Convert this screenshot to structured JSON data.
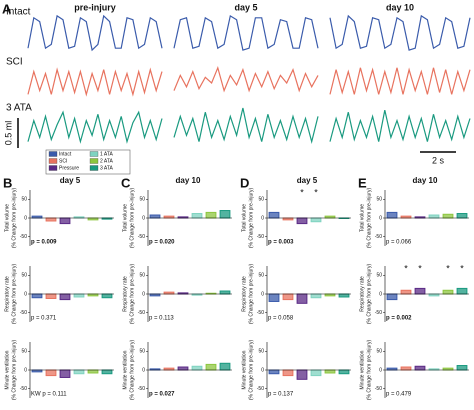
{
  "figure": {
    "panel_a": {
      "label": "A",
      "columns": [
        "pre-injury",
        "day 5",
        "day 10"
      ],
      "scale_volume": "0.5 ml",
      "scale_time": "2 s",
      "rows": [
        {
          "name": "Intact",
          "color": "#3a5bab",
          "traces": [
            [
              0.1,
              0.9,
              0.8,
              0.1,
              0.2,
              0.95,
              0.85,
              0.1,
              0.15,
              0.9,
              0.8,
              0.05,
              0.2,
              0.95,
              0.8,
              0.1,
              0.1,
              0.9,
              0.85,
              0.1,
              0.2,
              0.9,
              0.8,
              0.1
            ],
            [
              0.1,
              0.85,
              0.9,
              0.1,
              0.15,
              0.9,
              0.8,
              0.1,
              0.2,
              0.95,
              0.85,
              0.05,
              0.1,
              0.9,
              0.9,
              0.1,
              0.2,
              0.85,
              0.8,
              0.1,
              0.1,
              0.9,
              0.85,
              0.1
            ],
            [
              0.9,
              0.1,
              0.2,
              0.95,
              0.8,
              0.1,
              0.15,
              0.9,
              0.85,
              0.1,
              0.2,
              0.9,
              0.8,
              0.05,
              0.1,
              0.95,
              0.85,
              0.1,
              0.2,
              0.9,
              0.8,
              0.1,
              0.15,
              0.9
            ]
          ]
        },
        {
          "name": "SCI",
          "color": "#e8735f",
          "traces": [
            [
              0.2,
              0.8,
              0.3,
              0.75,
              0.2,
              0.85,
              0.3,
              0.8,
              0.25,
              0.8,
              0.2,
              0.75,
              0.3,
              0.85,
              0.2,
              0.8,
              0.3,
              0.75,
              0.2,
              0.8,
              0.25,
              0.85,
              0.3,
              0.8
            ],
            [
              0.3,
              0.7,
              0.4,
              0.8,
              0.35,
              0.65,
              0.5,
              0.9,
              0.3,
              0.7,
              0.45,
              0.85,
              0.3,
              0.75,
              0.4,
              0.8,
              0.35,
              0.7,
              0.5,
              0.85,
              0.3,
              0.75,
              0.4,
              0.7
            ],
            [
              0.2,
              0.85,
              0.25,
              0.8,
              0.2,
              0.9,
              0.3,
              0.85,
              0.2,
              0.8,
              0.25,
              0.9,
              0.2,
              0.85,
              0.3,
              0.8,
              0.2,
              0.9,
              0.25,
              0.85,
              0.2,
              0.8,
              0.3,
              0.85
            ]
          ]
        },
        {
          "name": "3 ATA",
          "color": "#1a9a80",
          "traces": [
            [
              0.2,
              0.7,
              0.3,
              0.8,
              0.25,
              0.6,
              0.9,
              0.3,
              0.75,
              0.2,
              0.7,
              0.35,
              0.85,
              0.25,
              0.7,
              0.3,
              0.8,
              0.2,
              0.65,
              0.9,
              0.3,
              0.7,
              0.25,
              0.75
            ],
            [
              0.3,
              0.8,
              0.35,
              0.75,
              0.2,
              0.9,
              0.3,
              0.7,
              0.25,
              0.8,
              0.35,
              1.0,
              0.3,
              0.75,
              0.2,
              0.85,
              0.3,
              0.7,
              0.25,
              0.8,
              0.3,
              0.75,
              0.2,
              0.8
            ],
            [
              0.2,
              0.75,
              0.3,
              0.9,
              0.25,
              0.7,
              0.3,
              0.8,
              0.2,
              0.95,
              0.3,
              0.7,
              0.25,
              0.8,
              0.3,
              0.75,
              0.2,
              0.85,
              0.3,
              0.7,
              0.25,
              0.8,
              0.3,
              0.75
            ]
          ]
        }
      ]
    },
    "legend": [
      {
        "name": "Intact",
        "color": "#3a5bab"
      },
      {
        "name": "SCI",
        "color": "#e8735f"
      },
      {
        "name": "Pressure",
        "color": "#5b2a86"
      },
      {
        "name": "1 ATA",
        "color": "#7fd3c0"
      },
      {
        "name": "2 ATA",
        "color": "#8dc63f"
      },
      {
        "name": "3 ATA",
        "color": "#1a9a80"
      }
    ],
    "ylim": [
      -75,
      75
    ],
    "yticks": [
      50,
      0,
      -50
    ],
    "panels": [
      {
        "label": "B",
        "title": "day 5",
        "plots": [
          {
            "ylabel": [
              "Total volume",
              "(% Change from pre-injury)"
            ],
            "p": "p = 0.009",
            "bold": true,
            "values": [
              5,
              -8,
              -15,
              3,
              -5,
              -3
            ]
          },
          {
            "ylabel": [
              "Respiratory rate",
              "(% Change from pre-injury)"
            ],
            "p": "p = 0.371",
            "bold": false,
            "values": [
              -10,
              -12,
              -15,
              -8,
              -5,
              -10
            ]
          },
          {
            "ylabel": [
              "Minute ventilation",
              "(% Change from pre-injury)"
            ],
            "p": "KW p = 0.111",
            "bold": false,
            "values": [
              -5,
              -15,
              -20,
              -10,
              -8,
              -10
            ]
          }
        ]
      },
      {
        "label": "C",
        "title": "day 10",
        "plots": [
          {
            "ylabel": [
              "Total volume",
              "(% Change from pre-injury)"
            ],
            "p": "p = 0.020",
            "bold": true,
            "values": [
              8,
              5,
              3,
              12,
              15,
              20
            ]
          },
          {
            "ylabel": [
              "Respiratory rate",
              "(% Change from pre-injury)"
            ],
            "p": "p = 0.113",
            "bold": false,
            "values": [
              -5,
              5,
              3,
              -3,
              2,
              8
            ]
          },
          {
            "ylabel": [
              "Minute ventilation",
              "(% Change from pre-injury)"
            ],
            "p": "p = 0.027",
            "bold": true,
            "values": [
              3,
              5,
              8,
              10,
              15,
              18
            ]
          }
        ]
      },
      {
        "label": "D",
        "title": "day 5",
        "plots": [
          {
            "ylabel": [
              "Total volume",
              "(% Change from pre-injury)"
            ],
            "p": "p = 0.003",
            "bold": true,
            "values": [
              15,
              -5,
              -15,
              -10,
              5,
              0
            ],
            "stars": [
              null,
              null,
              "*",
              "*",
              null,
              null
            ]
          },
          {
            "ylabel": [
              "Respiratory rate",
              "(% Change from pre-injury)"
            ],
            "p": "p = 0.058",
            "bold": false,
            "values": [
              -20,
              -15,
              -25,
              -10,
              -5,
              -8
            ]
          },
          {
            "ylabel": [
              "Minute ventilation",
              "(% Change from pre-injury)"
            ],
            "p": "p = 0.137",
            "bold": false,
            "values": [
              -10,
              -15,
              -25,
              -15,
              -8,
              -10
            ]
          }
        ]
      },
      {
        "label": "E",
        "title": "day 10",
        "plots": [
          {
            "ylabel": [
              "Total volume",
              "(% Change from pre-injury)"
            ],
            "p": "p = 0.066",
            "bold": false,
            "values": [
              15,
              5,
              3,
              8,
              10,
              12
            ]
          },
          {
            "ylabel": [
              "Respiratory rate",
              "(% Change from pre-injury)"
            ],
            "p": "p = 0.002",
            "bold": true,
            "values": [
              -15,
              10,
              15,
              -5,
              10,
              15
            ],
            "stars": [
              null,
              "*",
              "*",
              null,
              "*",
              "*"
            ]
          },
          {
            "ylabel": [
              "Minute ventilation",
              "(% Change from pre-injury)"
            ],
            "p": "p = 0.479",
            "bold": false,
            "values": [
              5,
              8,
              10,
              3,
              5,
              12
            ]
          }
        ]
      }
    ]
  }
}
